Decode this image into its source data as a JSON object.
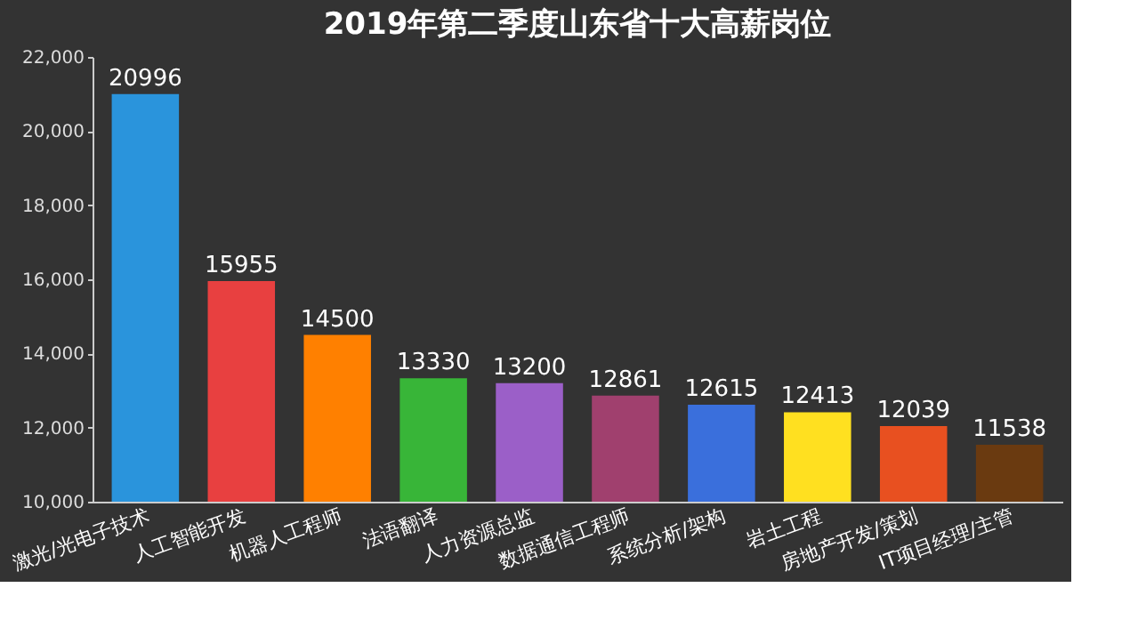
{
  "chart_data": {
    "type": "bar",
    "title": "2019年第二季度山东省十大高薪岗位",
    "categories": [
      "激光/光电子技术",
      "人工智能开发",
      "机器人工程师",
      "法语翻译",
      "人力资源总监",
      "数据通信工程师",
      "系统分析/架构",
      "岩土工程",
      "房地产开发/策划",
      "IT项目经理/主管"
    ],
    "values": [
      20996,
      15955,
      14500,
      13330,
      13200,
      12861,
      12615,
      12413,
      12039,
      11538
    ],
    "colors": [
      "#2a94dc",
      "#e84040",
      "#ff8000",
      "#38b538",
      "#9b5fc8",
      "#a0406e",
      "#3a6fdc",
      "#ffe020",
      "#e85020",
      "#6a3a10"
    ],
    "ylim": [
      10000,
      22000
    ],
    "yticks": [
      {
        "value": 10000,
        "label": "10,000"
      },
      {
        "value": 12000,
        "label": "12,000"
      },
      {
        "value": 14000,
        "label": "14,000"
      },
      {
        "value": 16000,
        "label": "16,000"
      },
      {
        "value": 18000,
        "label": "18,000"
      },
      {
        "value": 20000,
        "label": "20,000"
      },
      {
        "value": 22000,
        "label": "22,000"
      }
    ],
    "data_labels": true,
    "grid": false
  }
}
